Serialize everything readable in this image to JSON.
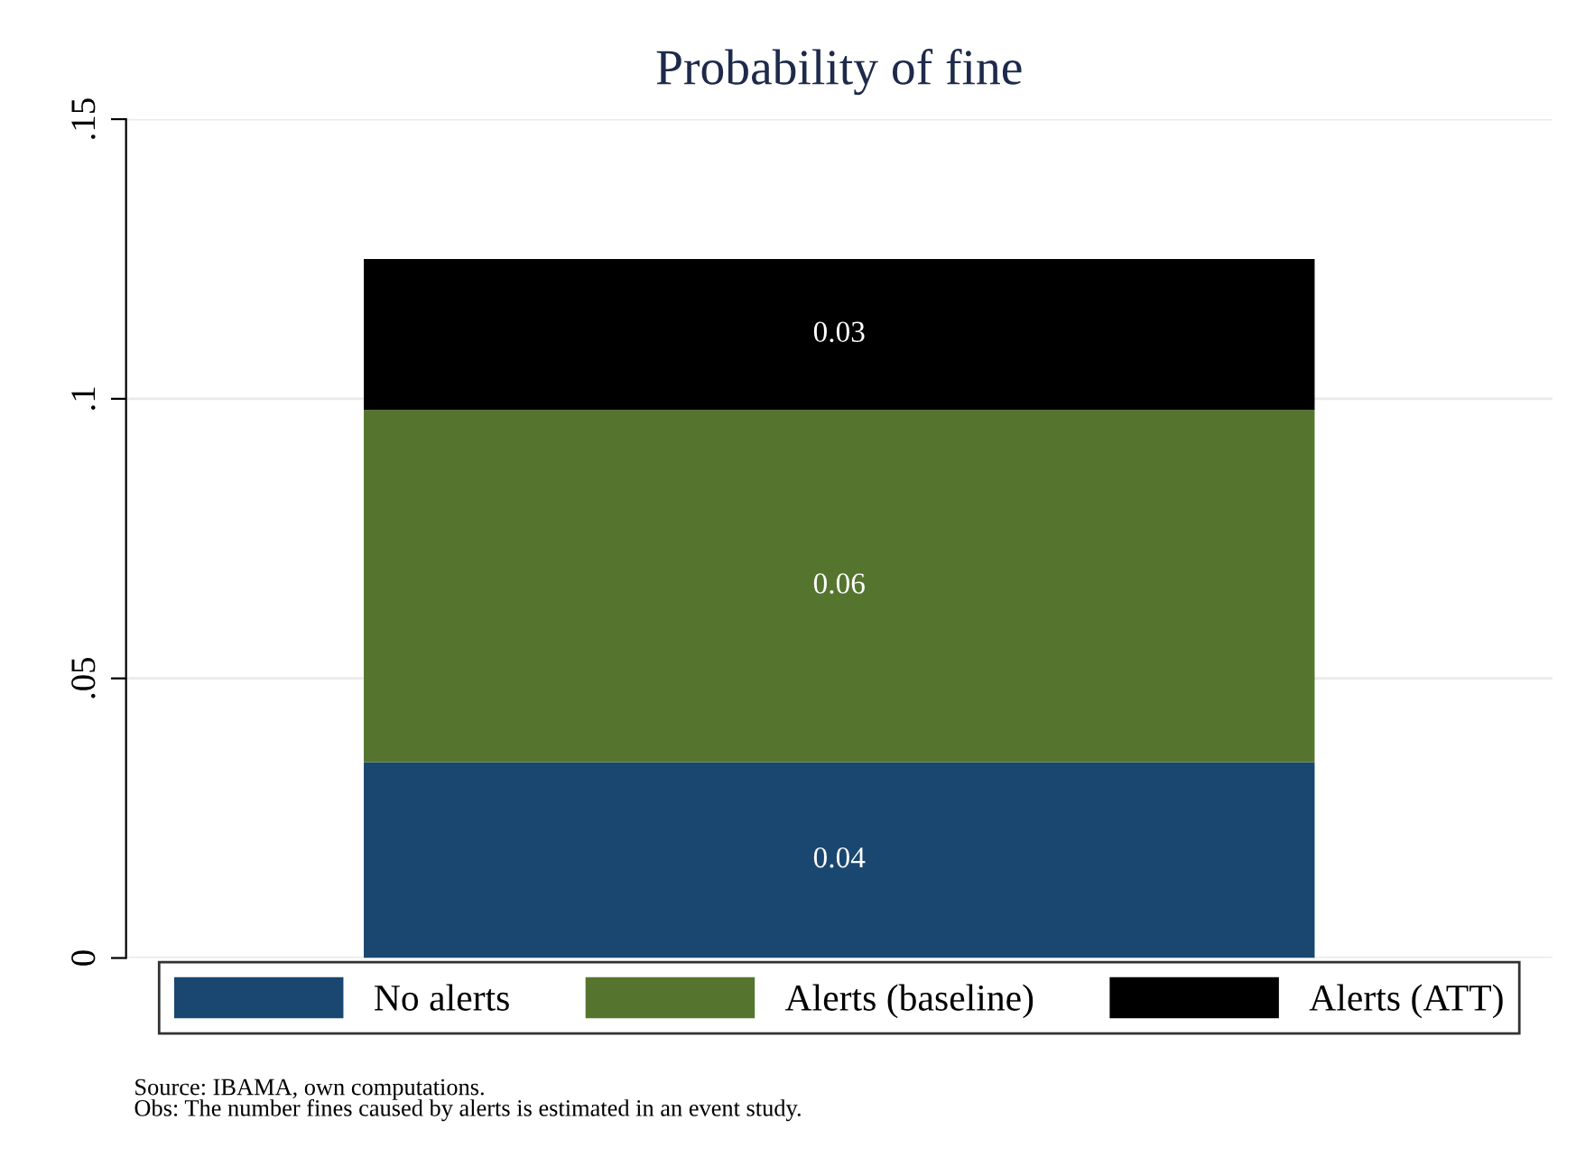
{
  "chart_data": {
    "type": "bar",
    "title": "Probability of fine",
    "categories": [
      null
    ],
    "stacked": true,
    "series": [
      {
        "name": "No alerts",
        "color": "#1a476f",
        "values": [
          0.035
        ],
        "value_labels": [
          "0.04"
        ]
      },
      {
        "name": "Alerts (baseline)",
        "color": "#55752f",
        "values": [
          0.063
        ],
        "value_labels": [
          "0.06"
        ]
      },
      {
        "name": "Alerts (ATT)",
        "color": "#000000",
        "values": [
          0.027
        ],
        "value_labels": [
          "0.03"
        ]
      }
    ],
    "ylim": [
      0,
      0.15
    ],
    "yticks": [
      {
        "value": 0,
        "label": "0"
      },
      {
        "value": 0.05,
        "label": ".05"
      },
      {
        "value": 0.1,
        "label": ".1"
      },
      {
        "value": 0.15,
        "label": ".15"
      }
    ],
    "grid": "y",
    "legend": "bottom",
    "annotations": [
      "Source: IBAMA, own computations.",
      "Obs: The number fines caused by alerts is estimated in an event study."
    ]
  }
}
